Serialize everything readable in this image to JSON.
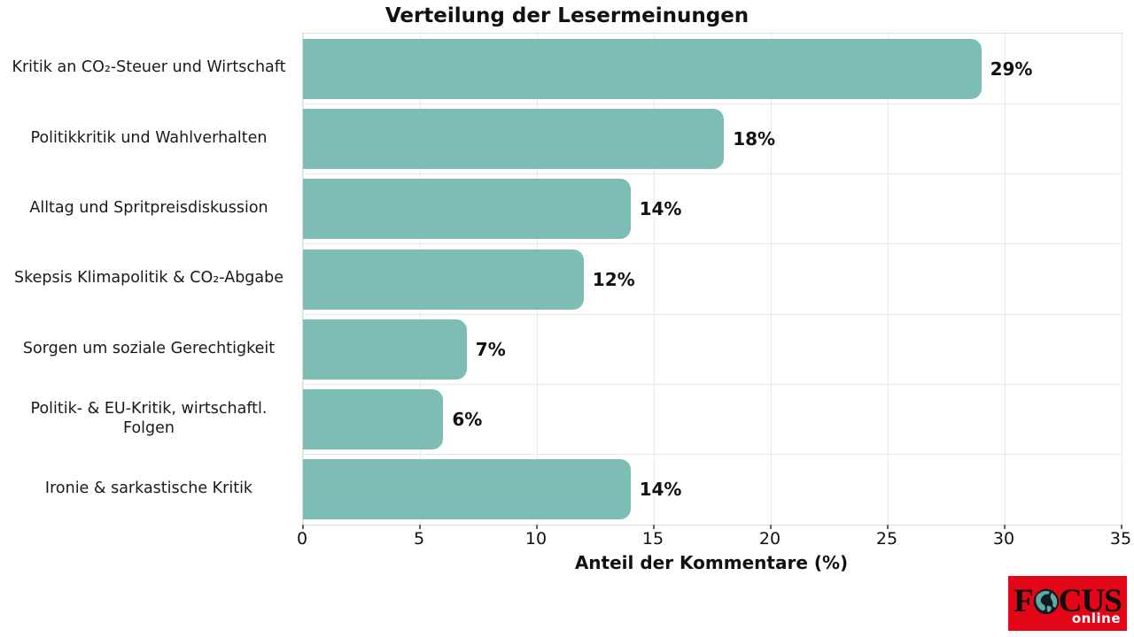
{
  "title": "Verteilung der Lesermeinungen",
  "chart_data": {
    "type": "bar",
    "orientation": "horizontal",
    "title": "Verteilung der Lesermeinungen",
    "categories": [
      "Kritik an CO₂-Steuer und Wirtschaft",
      "Politikkritik und Wahlverhalten",
      "Alltag und Spritpreisdiskussion",
      "Skepsis Klimapolitik & CO₂-Abgabe",
      "Sorgen um soziale Gerechtigkeit",
      "Politik- & EU-Kritik, wirtschaftl. Folgen",
      "Ironie & sarkastische Kritik"
    ],
    "values": [
      29,
      18,
      14,
      12,
      7,
      6,
      14
    ],
    "value_labels": [
      "29%",
      "18%",
      "14%",
      "12%",
      "7%",
      "6%",
      "14%"
    ],
    "xlabel": "Anteil der Kommentare (%)",
    "xlim": [
      0,
      35
    ],
    "xticks": [
      0,
      5,
      10,
      15,
      20,
      25,
      30,
      35
    ],
    "grid": true,
    "legend": false,
    "bar_color": "#7ebdb5"
  },
  "colors": {
    "background": "#ffffff",
    "bar": "#7ebdb5",
    "grid": "#eaeaea",
    "spine": "#dedede",
    "text": "#111111",
    "logo_red": "#e30617",
    "logo_globe_ocean": "#0e1c22",
    "logo_globe_land": "#5fa9a1",
    "logo_text": "#0d0d0d",
    "logo_online_text": "#ffffff"
  },
  "logo": {
    "brand_pre": "F",
    "brand_post": "CUS",
    "brand_full": "FOCUS",
    "subtitle": "online",
    "globe_icon": "globe-icon"
  }
}
